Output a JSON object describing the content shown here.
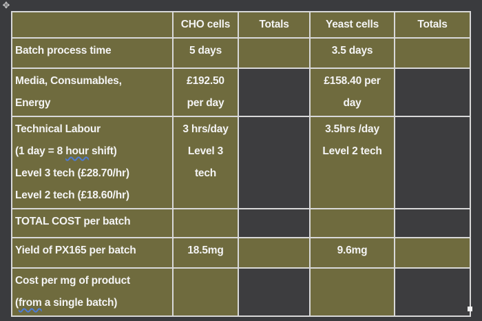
{
  "table": {
    "headers": {
      "cho": "CHO cells",
      "cho_totals": "Totals",
      "yeast": "Yeast cells",
      "yeast_totals": "Totals"
    },
    "rows": {
      "batch_time": {
        "label": "Batch process time",
        "cho": "5 days",
        "yeast": "3.5 days"
      },
      "media": {
        "label_1": "Media, Consumables,",
        "label_2": "Energy",
        "cho_1": "£192.50",
        "cho_2": "per day",
        "yeast_1": "£158.40 per",
        "yeast_2": "day"
      },
      "labour": {
        "label_1": "Technical Labour",
        "label_2a": "(1 day = 8 ",
        "label_2b": "hour",
        "label_2c": " shift)",
        "label_3": "Level 3 tech (£28.70/hr)",
        "label_4": "Level 2 tech (£18.60/hr)",
        "cho_1": "3 hrs/day",
        "cho_2": "Level 3",
        "cho_3": "tech",
        "yeast_1": "3.5hrs /day",
        "yeast_2": "Level 2 tech"
      },
      "total": {
        "label": "TOTAL COST per batch"
      },
      "yield": {
        "label": "Yield of PX165 per batch",
        "cho": "18.5mg",
        "yeast": "9.6mg"
      },
      "cost_per_mg": {
        "label_1": "Cost per mg of product",
        "label_2a": "(",
        "label_2b": "from",
        "label_2c": " a single batch)"
      }
    }
  }
}
